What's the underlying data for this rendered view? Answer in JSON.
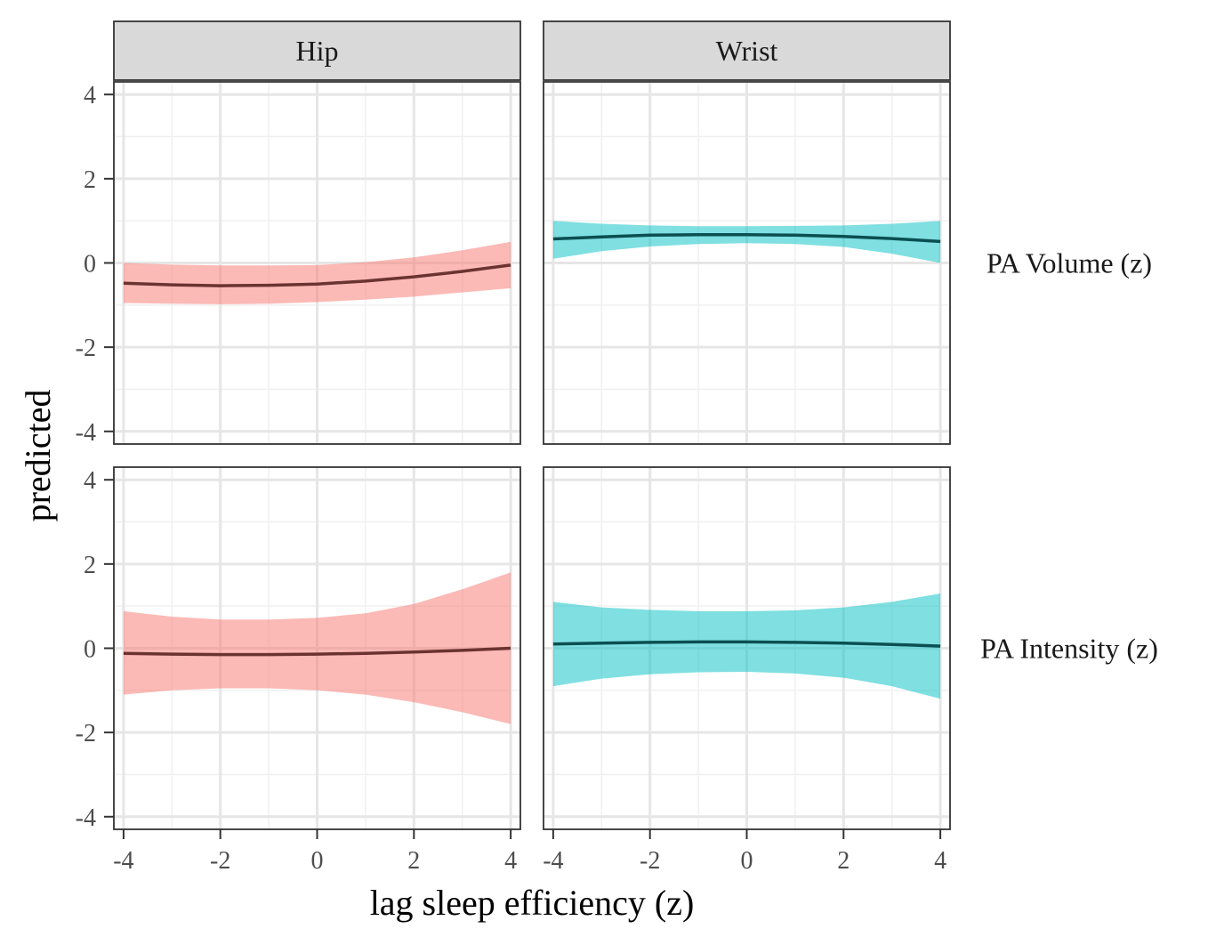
{
  "chart_data": {
    "type": "line",
    "description_layout": "faceted ribbon line chart, 2 rows x 2 columns",
    "xlabel": "lag sleep efficiency (z)",
    "ylabel": "predicted",
    "xlim": [
      -4.2,
      4.2
    ],
    "ylim": [
      -4.3,
      4.3
    ],
    "x_ticks": [
      -4,
      -2,
      0,
      2,
      4
    ],
    "y_ticks": [
      -4,
      -2,
      0,
      2,
      4
    ],
    "x_tick_labels": [
      "-4",
      "-2",
      "0",
      "2",
      "4"
    ],
    "y_tick_labels": [
      "-4",
      "-2",
      "0",
      "2",
      "4"
    ],
    "grid": true,
    "legend": "none",
    "columns": [
      "Hip",
      "Wrist"
    ],
    "rows": [
      "PA Volume (z)",
      "PA Intensity (z)"
    ],
    "colors": {
      "Hip": {
        "ribbon": "#F8766D",
        "line": "#6B3330"
      },
      "Wrist": {
        "ribbon": "#00BFC4",
        "line": "#0B4F52"
      }
    },
    "panels": [
      {
        "column": "Hip",
        "row": "PA Volume (z)",
        "x": [
          -4,
          -3,
          -2,
          -1,
          0,
          1,
          2,
          3,
          4
        ],
        "y": [
          -0.48,
          -0.52,
          -0.54,
          -0.53,
          -0.5,
          -0.43,
          -0.33,
          -0.2,
          -0.05
        ],
        "lower": [
          -0.95,
          -0.97,
          -0.98,
          -0.97,
          -0.93,
          -0.87,
          -0.8,
          -0.7,
          -0.6
        ],
        "upper": [
          0.0,
          -0.04,
          -0.06,
          -0.06,
          -0.05,
          0.02,
          0.13,
          0.3,
          0.5
        ]
      },
      {
        "column": "Wrist",
        "row": "PA Volume (z)",
        "x": [
          -4,
          -3,
          -2,
          -1,
          0,
          1,
          2,
          3,
          4
        ],
        "y": [
          0.57,
          0.62,
          0.66,
          0.67,
          0.67,
          0.66,
          0.63,
          0.58,
          0.51
        ],
        "lower": [
          0.1,
          0.28,
          0.39,
          0.45,
          0.47,
          0.45,
          0.38,
          0.22,
          0.0
        ],
        "upper": [
          1.0,
          0.93,
          0.89,
          0.87,
          0.87,
          0.88,
          0.89,
          0.93,
          1.0
        ]
      },
      {
        "column": "Hip",
        "row": "PA Intensity (z)",
        "x": [
          -4,
          -3,
          -2,
          -1,
          0,
          1,
          2,
          3,
          4
        ],
        "y": [
          -0.12,
          -0.14,
          -0.15,
          -0.15,
          -0.14,
          -0.12,
          -0.09,
          -0.05,
          0.0
        ],
        "lower": [
          -1.1,
          -1.0,
          -0.95,
          -0.95,
          -1.0,
          -1.1,
          -1.28,
          -1.52,
          -1.8
        ],
        "upper": [
          0.88,
          0.75,
          0.68,
          0.68,
          0.72,
          0.83,
          1.05,
          1.4,
          1.8
        ]
      },
      {
        "column": "Wrist",
        "row": "PA Intensity (z)",
        "x": [
          -4,
          -3,
          -2,
          -1,
          0,
          1,
          2,
          3,
          4
        ],
        "y": [
          0.1,
          0.12,
          0.14,
          0.15,
          0.15,
          0.14,
          0.12,
          0.09,
          0.05
        ],
        "lower": [
          -0.9,
          -0.72,
          -0.62,
          -0.57,
          -0.56,
          -0.6,
          -0.7,
          -0.9,
          -1.2
        ],
        "upper": [
          1.1,
          0.97,
          0.91,
          0.88,
          0.88,
          0.9,
          0.97,
          1.1,
          1.3
        ]
      }
    ]
  }
}
